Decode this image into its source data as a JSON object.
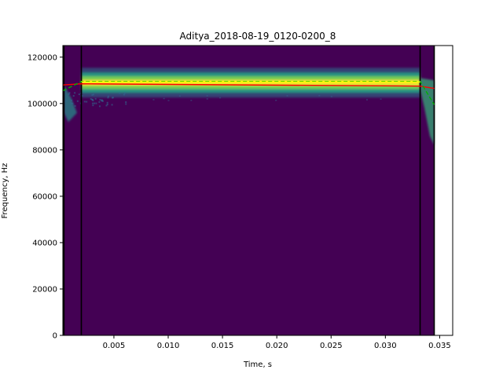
{
  "chart_data": {
    "type": "heatmap",
    "title": "Aditya_2018-08-19_0120-0200_8",
    "xlabel": "Time, s",
    "ylabel": "Frequency, Hz",
    "xlim": [
      0.0003,
      0.0362
    ],
    "ylim": [
      0,
      125000
    ],
    "data_extent": {
      "x": [
        0.0003,
        0.0345
      ],
      "y": [
        0,
        125000
      ]
    },
    "x_ticks": [
      0.005,
      0.01,
      0.015,
      0.02,
      0.025,
      0.03,
      0.035
    ],
    "x_tick_labels": [
      "0.005",
      "0.010",
      "0.015",
      "0.020",
      "0.025",
      "0.030",
      "0.035"
    ],
    "y_ticks": [
      0,
      20000,
      40000,
      60000,
      80000,
      100000,
      120000
    ],
    "y_tick_labels": [
      "0",
      "20000",
      "40000",
      "60000",
      "80000",
      "100000",
      "120000"
    ],
    "grid": false,
    "colormap": "viridis",
    "background_color": "#440154",
    "call_band": {
      "x_start": 0.002,
      "x_end": 0.0332,
      "freq_center": 109000,
      "freq_halfwidth": 2000
    },
    "vertical_lines": [
      {
        "x": 0.0004,
        "color": "#000000"
      },
      {
        "x": 0.002,
        "color": "#000000"
      },
      {
        "x": 0.0332,
        "color": "#000000"
      },
      {
        "x": 0.0345,
        "color": "#000000"
      }
    ],
    "overlay_lines": [
      {
        "color": "#ff0000",
        "style": "solid",
        "x": [
          0.0003,
          0.002,
          0.0332,
          0.0345
        ],
        "y": [
          108000,
          108500,
          107500,
          106500
        ]
      },
      {
        "color": "#00b000",
        "style": "dashed",
        "x": [
          0.0003,
          0.002,
          0.0332,
          0.0345
        ],
        "y": [
          105500,
          109500,
          109500,
          99500
        ]
      },
      {
        "color": "#ffff00",
        "style": "solid",
        "x": [
          0.002,
          0.0332
        ],
        "y": [
          109300,
          109300
        ]
      }
    ]
  }
}
